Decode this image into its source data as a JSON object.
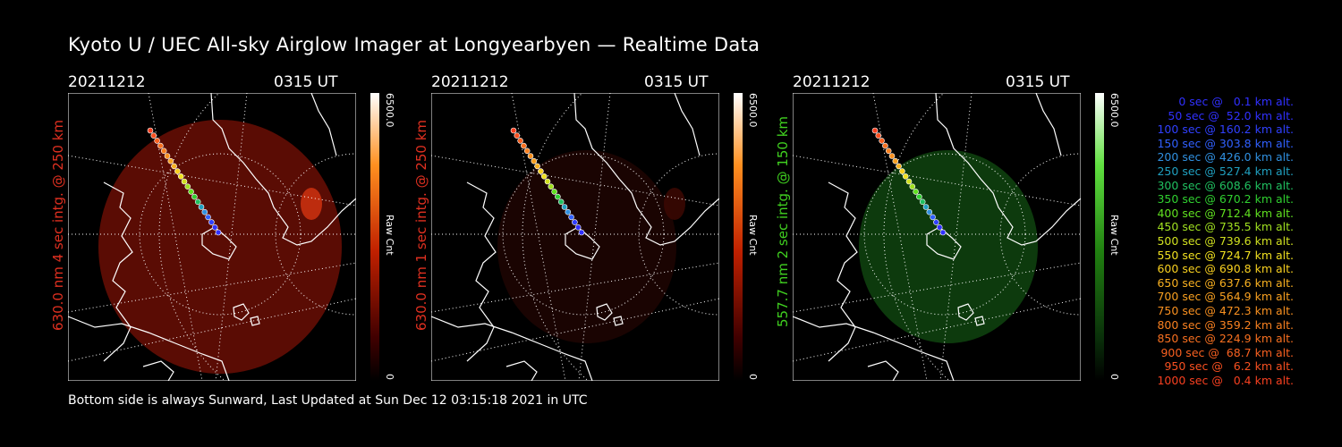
{
  "title": "Kyoto U / UEC All-sky Airglow Imager at Longyearbyen — Realtime Data",
  "footer": "Bottom side is always Sunward, Last Updated at Sun Dec 12 03:15:18 2021 in UTC",
  "panels": [
    {
      "date": "20211212",
      "time": "0315 UT",
      "ylabel": "630.0 nm 4 sec intg. @ 250 km",
      "label_color": "#e03020",
      "cbar_max": "6500.0",
      "cbar_min": "0",
      "cbar_label": "Raw Cnt",
      "cbar_colors": [
        "#ffffff",
        "#ff9020",
        "#c02000",
        "#400000",
        "#000000"
      ]
    },
    {
      "date": "20211212",
      "time": "0315 UT",
      "ylabel": "630.0 nm 1 sec intg. @ 250 km",
      "label_color": "#e03020",
      "cbar_max": "6500.0",
      "cbar_min": "0",
      "cbar_label": "Raw Cnt",
      "cbar_colors": [
        "#ffffff",
        "#ff9020",
        "#c02000",
        "#400000",
        "#000000"
      ]
    },
    {
      "date": "20211212",
      "time": "0315 UT",
      "ylabel": "557.7 nm 2 sec intg. @ 150 km",
      "label_color": "#40d020",
      "cbar_max": "6500.0",
      "cbar_min": "0",
      "cbar_label": "Raw Cnt",
      "cbar_colors": [
        "#ffffff",
        "#60e040",
        "#208010",
        "#0a300a",
        "#000000"
      ]
    }
  ],
  "legend": [
    {
      "text": "0 sec @   0.1 km alt.",
      "color": "#3030ff"
    },
    {
      "text": "50 sec @  52.0 km alt.",
      "color": "#3030ff"
    },
    {
      "text": "100 sec @ 160.2 km alt.",
      "color": "#3040ff"
    },
    {
      "text": "150 sec @ 303.8 km alt.",
      "color": "#3060ff"
    },
    {
      "text": "200 sec @ 426.0 km alt.",
      "color": "#3090e0"
    },
    {
      "text": "250 sec @ 527.4 km alt.",
      "color": "#20a0c0"
    },
    {
      "text": "300 sec @ 608.6 km alt.",
      "color": "#20c060"
    },
    {
      "text": "350 sec @ 670.2 km alt.",
      "color": "#30d030"
    },
    {
      "text": "400 sec @ 712.4 km alt.",
      "color": "#60e020"
    },
    {
      "text": "450 sec @ 735.5 km alt.",
      "color": "#a0e020"
    },
    {
      "text": "500 sec @ 739.6 km alt.",
      "color": "#d0e020"
    },
    {
      "text": "550 sec @ 724.7 km alt.",
      "color": "#f0e020"
    },
    {
      "text": "600 sec @ 690.8 km alt.",
      "color": "#f8d020"
    },
    {
      "text": "650 sec @ 637.6 km alt.",
      "color": "#f8b020"
    },
    {
      "text": "700 sec @ 564.9 km alt.",
      "color": "#f8a020"
    },
    {
      "text": "750 sec @ 472.3 km alt.",
      "color": "#f89020"
    },
    {
      "text": "800 sec @ 359.2 km alt.",
      "color": "#f88020"
    },
    {
      "text": "850 sec @ 224.9 km alt.",
      "color": "#f87020"
    },
    {
      "text": "900 sec @  68.7 km alt.",
      "color": "#f86020"
    },
    {
      "text": "950 sec @   6.2 km alt.",
      "color": "#f85020"
    },
    {
      "text": "1000 sec @   0.4 km alt.",
      "color": "#f84020"
    }
  ]
}
